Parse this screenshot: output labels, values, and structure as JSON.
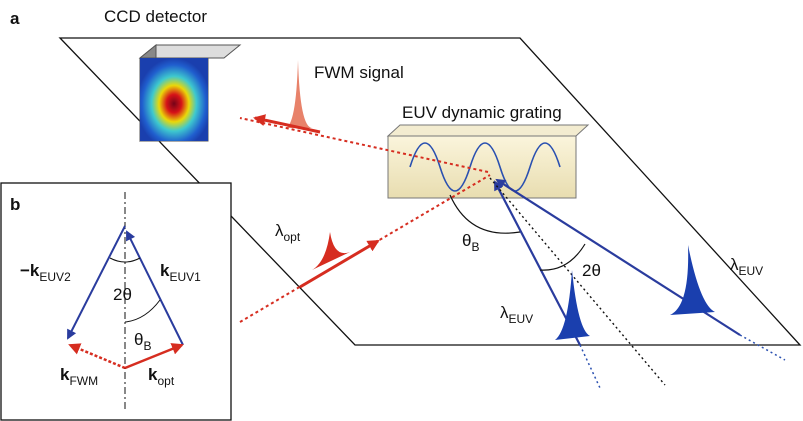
{
  "panel_a": {
    "label": "a",
    "ccd": "CCD detector",
    "fwm": "FWM signal",
    "grating": "EUV dynamic grating",
    "lambda_opt": {
      "main": "λ",
      "sub": "opt"
    },
    "theta_b": {
      "main": "θ",
      "sub": "B"
    },
    "two_theta": "2θ",
    "lambda_euv_1": {
      "main": "λ",
      "sub": "EUV"
    },
    "lambda_euv_2": {
      "main": "λ",
      "sub": "EUV"
    }
  },
  "panel_b": {
    "label": "b",
    "k_euv2": {
      "main": "−k",
      "sub": "EUV2"
    },
    "k_euv1": {
      "main": "k",
      "sub": "EUV1"
    },
    "two_theta": "2θ",
    "theta_b": {
      "main": "θ",
      "sub": "B"
    },
    "k_fwm": {
      "main": "k",
      "sub": "FWM"
    },
    "k_opt": {
      "main": "k",
      "sub": "opt"
    }
  }
}
